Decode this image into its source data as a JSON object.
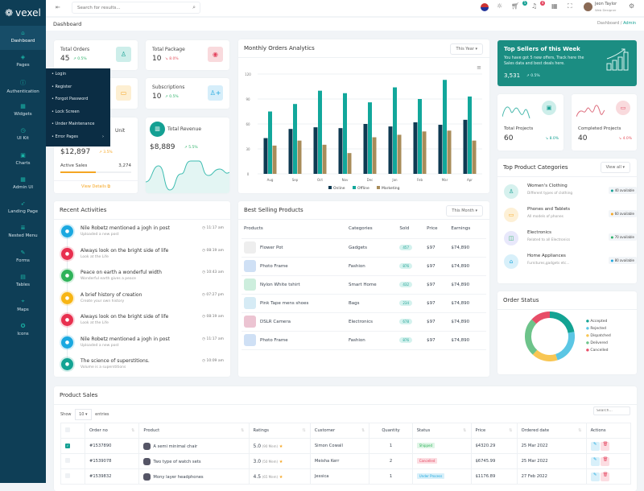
{
  "app": {
    "name": "vexel"
  },
  "colors": {
    "sidebar": "#0e3e56",
    "accent": "#14a093",
    "online": "#0e3a52",
    "offline": "#12a79b",
    "marketing": "#a88c5a"
  },
  "sidebar": {
    "items": [
      {
        "label": "Dashboard",
        "icon": "home-icon"
      },
      {
        "label": "Pages",
        "icon": "pages-icon"
      },
      {
        "label": "Authentication",
        "icon": "lock-icon"
      },
      {
        "label": "Widgets",
        "icon": "widgets-icon"
      },
      {
        "label": "UI Kit",
        "icon": "ui-kit-icon"
      },
      {
        "label": "Charts",
        "icon": "chart-icon"
      },
      {
        "label": "Admin UI",
        "icon": "admin-icon"
      },
      {
        "label": "Landing Page",
        "icon": "rocket-icon"
      },
      {
        "label": "Nested Menu",
        "icon": "menu-icon"
      },
      {
        "label": "Forms",
        "icon": "form-icon"
      },
      {
        "label": "Tables",
        "icon": "table-icon"
      },
      {
        "label": "Maps",
        "icon": "map-icon"
      },
      {
        "label": "Icons",
        "icon": "icons-icon"
      }
    ]
  },
  "auth_menu": [
    "Login",
    "Register",
    "Forgot Password",
    "Lock Screen",
    "Under Maintenance",
    "Error Pages"
  ],
  "header": {
    "search_placeholder": "Search for results...",
    "cart_count": "5",
    "notif_count": "4",
    "user_name": "Jeon Taylor",
    "user_role": "Web Designer"
  },
  "breadcrumb": {
    "title": "Dashboard",
    "trail": "Dashboard",
    "current": "Admin"
  },
  "stats": {
    "orders": {
      "label": "Total Orders",
      "value": "45",
      "change": "0.5%"
    },
    "package": {
      "label": "Total Package",
      "value": "10",
      "change": "8.0%"
    },
    "subs": {
      "label": "Subscriptions",
      "value": "10",
      "change": "0.5%"
    },
    "unit": {
      "label": "Unit",
      "value": "$12,897",
      "change": "3.5%",
      "active_label": "Active Sales",
      "active_value": "3,274",
      "progress": 0.5,
      "link": "View Details"
    },
    "revenue": {
      "label": "Total Revenue",
      "value": "$8,889",
      "change": "5.5%"
    }
  },
  "monthly": {
    "title": "Monthly Orders Analytics",
    "filter": "This Year"
  },
  "chart_data": {
    "type": "bar",
    "categories": [
      "Aug",
      "Sep",
      "Oct",
      "Nov",
      "Dec",
      "Jan",
      "Feb",
      "Mar",
      "Apr"
    ],
    "series": [
      {
        "name": "Online",
        "values": [
          43,
          54,
          56,
          55,
          60,
          57,
          62,
          59,
          65
        ]
      },
      {
        "name": "Offline",
        "values": [
          75,
          84,
          100,
          97,
          86,
          104,
          90,
          113,
          93
        ]
      },
      {
        "name": "Marketing",
        "values": [
          34,
          40,
          35,
          25,
          44,
          47,
          51,
          52,
          40
        ]
      }
    ],
    "ylim": [
      0,
      120
    ],
    "yticks": [
      "0",
      "30",
      "60",
      "90",
      "120"
    ],
    "grid": true,
    "legend": "bottom"
  },
  "top_sellers": {
    "title": "Top Sellers of this Week",
    "text": "You have got 5 new offers, Track here the Sales data and best deals here.",
    "value": "3,531",
    "change": "0.5%"
  },
  "projects": {
    "total_label": "Total Projects",
    "total": "60",
    "total_change": "8.0%",
    "done_label": "Completed Projects",
    "done": "40",
    "done_change": "4.0%"
  },
  "categories": {
    "title": "Top Product Categories",
    "filter": "View all",
    "items": [
      {
        "name": "Women's Clothing",
        "desc": "Different types of clothing",
        "badge": "40 available",
        "color": "#14a093",
        "bg": "#d6f1ee",
        "icon": "clothing-icon",
        "glyph": "♙"
      },
      {
        "name": "Phones and Tablets",
        "desc": "All models of phones",
        "badge": "60 available",
        "color": "#f5a623",
        "bg": "#fdf0d6",
        "icon": "tablet-icon",
        "glyph": "▭"
      },
      {
        "name": "Electronics",
        "desc": "Related to all Electronics",
        "badge": "70 available",
        "color": "#2fb36b",
        "bg": "#e8e8fb",
        "icon": "bag-icon",
        "glyph": "◫"
      },
      {
        "name": "Home Appliances",
        "desc": "Furnitures,gadgets etc...",
        "badge": "80 available",
        "color": "#1aa6dd",
        "bg": "#d8f0fa",
        "icon": "house-icon",
        "glyph": "⌂"
      }
    ]
  },
  "order_status": {
    "title": "Order Status",
    "slices": [
      {
        "label": "Accepted",
        "value": 22,
        "color": "#13a393"
      },
      {
        "label": "Rejected",
        "value": 23,
        "color": "#5bc6e4"
      },
      {
        "label": "Dispatched",
        "value": 17,
        "color": "#f8c654"
      },
      {
        "label": "Delivered",
        "value": 25,
        "color": "#6dc38a"
      },
      {
        "label": "Cancelled",
        "value": 13,
        "color": "#e84d67"
      }
    ]
  },
  "activities": {
    "title": "Recent Activities",
    "items": [
      {
        "title": "Nile Robetz mentioned a jogh in post",
        "sub": "Uploaded a new post",
        "time": "11:17 am",
        "color": "#1aa8e0",
        "icon": "briefcase-icon"
      },
      {
        "title": "Always look on the bright side of life",
        "sub": "Look at the Life",
        "time": "08:19 am",
        "color": "#e8304f",
        "icon": "gear-icon"
      },
      {
        "title": "Peace on earth a wonderful width",
        "sub": "Wonderful earth gives a peace",
        "time": "10:43 am",
        "color": "#2fb35a",
        "icon": "user-icon"
      },
      {
        "title": "A brief history of creation",
        "sub": "Create your own history",
        "time": "07:27 pm",
        "color": "#f7b515",
        "icon": "clock-icon"
      },
      {
        "title": "Always look on the bright side of life",
        "sub": "Look at the Life",
        "time": "08:19 am",
        "color": "#e8304f",
        "icon": "gear-icon"
      },
      {
        "title": "Nile Robetz mentioned a jogh in post",
        "sub": "Uploaded a new post",
        "time": "11:17 am",
        "color": "#1aa8e0",
        "icon": "briefcase-icon"
      },
      {
        "title": "The science of superstitions.",
        "sub": "Volume is a superstitions",
        "time": "10:09 am",
        "color": "#13a393",
        "icon": "broadcast-icon"
      }
    ]
  },
  "best": {
    "title": "Best Selling Products",
    "filter": "This Month",
    "headers": [
      "Products",
      "Categories",
      "Sold",
      "Price",
      "Earnings"
    ],
    "rows": [
      {
        "name": "Flower Pot",
        "cat": "Gadgets",
        "sold": "457",
        "price": "$97",
        "earn": "$74,890",
        "bg": "#eeeeee"
      },
      {
        "name": "Photo Frame",
        "cat": "Fashion",
        "sold": "876",
        "price": "$97",
        "earn": "$74,890",
        "bg": "#cfe0f5"
      },
      {
        "name": "Nylon White tshirt",
        "cat": "Smart Home",
        "sold": "432",
        "price": "$97",
        "earn": "$74,890",
        "bg": "#cdeedd"
      },
      {
        "name": "Pink Tape mens shoes",
        "cat": "Bags",
        "sold": "234",
        "price": "$97",
        "earn": "$74,890",
        "bg": "#d6ebf5"
      },
      {
        "name": "DSLR Camera",
        "cat": "Electronics",
        "sold": "678",
        "price": "$97",
        "earn": "$74,890",
        "bg": "#ecc4d2"
      },
      {
        "name": "Photo Frame",
        "cat": "Fashion",
        "sold": "876",
        "price": "$97",
        "earn": "$74,890",
        "bg": "#cfe0f5"
      }
    ]
  },
  "sales": {
    "title": "Product Sales",
    "show": "Show",
    "entries_value": "10",
    "entries": "entries",
    "search_placeholder": "Search...",
    "headers": [
      "Order no",
      "Product",
      "Ratings",
      "Customer",
      "Quantity",
      "Status",
      "Price",
      "Ordered date",
      "Actions"
    ],
    "rows": [
      {
        "checked": true,
        "order": "#1537890",
        "product": "A semi minimal chair",
        "rating": "5.0",
        "reviews": "(90 Mem)",
        "customer": "Simon Cowall",
        "qty": "1",
        "status": "Shipped",
        "status_color": "#2fb35a",
        "status_bg": "#dff5e6",
        "price": "$4320.29",
        "date": "25 Mar 2022"
      },
      {
        "checked": false,
        "order": "#1539078",
        "product": "Two type of watch sets",
        "rating": "3.0",
        "reviews": "(50 Mem)",
        "customer": "Meisha Kerr",
        "qty": "2",
        "status": "Cancelled",
        "status_color": "#e4455f",
        "status_bg": "#fcdde2",
        "price": "$6745.99",
        "date": "25 Mar 2022"
      },
      {
        "checked": false,
        "order": "#1539832",
        "product": "Mony layer headphones",
        "rating": "4.5",
        "reviews": "(65 Mem)",
        "customer": "Jessica",
        "qty": "1",
        "status": "Under Process",
        "status_color": "#1aa6dd",
        "status_bg": "#d8f0fa",
        "price": "$1176.89",
        "date": "27 Feb 2022"
      }
    ]
  }
}
